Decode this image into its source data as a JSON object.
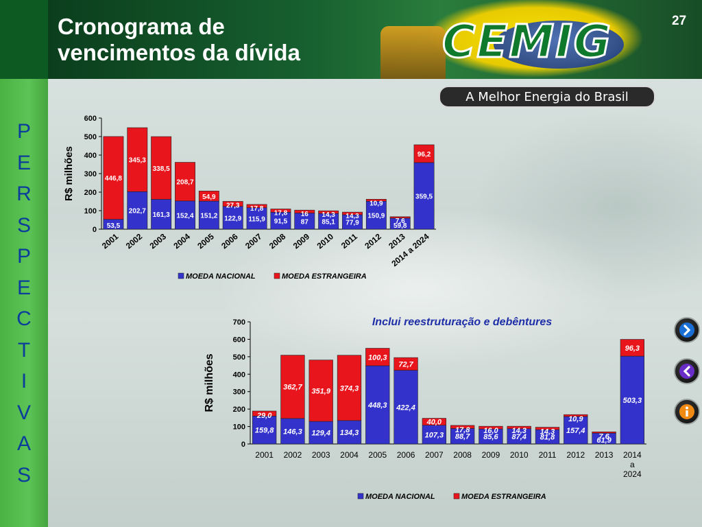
{
  "slide": {
    "title_line1": "Cronograma de",
    "title_line2": "vencimentos da dívida",
    "page_number": "27",
    "logo_text": "CEMIG",
    "slogan": "A Melhor Energia do Brasil",
    "sidebar_letters": [
      "P",
      "E",
      "R",
      "S",
      "P",
      "E",
      "C",
      "T",
      "I",
      "V",
      "A",
      "S"
    ]
  },
  "chart_data": [
    {
      "type": "bar",
      "stacked": true,
      "ylabel": "R$ milhões",
      "ylim": [
        0,
        600
      ],
      "yticks": [
        0,
        100,
        200,
        300,
        400,
        500,
        600
      ],
      "grid": false,
      "legend_position": "bottom",
      "categories": [
        "2001",
        "2002",
        "2003",
        "2004",
        "2005",
        "2006",
        "2007",
        "2008",
        "2009",
        "2010",
        "2011",
        "2012",
        "2013",
        "2014 a 2024"
      ],
      "series": [
        {
          "name": "MOEDA NACIONAL",
          "color": "#3333cc",
          "values": [
            53.5,
            202.7,
            161.3,
            152.4,
            151.2,
            122.9,
            115.9,
            91.5,
            87,
            85.1,
            77.9,
            150.9,
            59.8,
            359.5
          ],
          "labels": [
            "53,5",
            "202,7",
            "161,3",
            "152,4",
            "151,2",
            "122,9",
            "115,9",
            "91,5",
            "87",
            "85,1",
            "77,9",
            "150,9",
            "59,8",
            "359,5"
          ]
        },
        {
          "name": "MOEDA ESTRANGEIRA",
          "color": "#e8151c",
          "values": [
            446.8,
            345.3,
            338.5,
            208.7,
            54.9,
            27.3,
            17.8,
            17.8,
            16,
            14.3,
            14.3,
            10.9,
            7.6,
            96.2
          ],
          "labels": [
            "446,8",
            "345,3",
            "338,5",
            "208,7",
            "54,9",
            "27,3",
            "17,8",
            "17,8",
            "16",
            "14,3",
            "14,3",
            "10,9",
            "7,6",
            "96,2"
          ]
        }
      ]
    },
    {
      "type": "bar",
      "stacked": true,
      "title": "Inclui reestruturação e debêntures",
      "ylabel": "R$ milhões",
      "ylim": [
        0,
        700
      ],
      "yticks": [
        0,
        100,
        200,
        300,
        400,
        500,
        600,
        700
      ],
      "grid": false,
      "legend_position": "bottom",
      "categories": [
        "2001",
        "2002",
        "2003",
        "2004",
        "2005",
        "2006",
        "2007",
        "2008",
        "2009",
        "2010",
        "2011",
        "2012",
        "2013",
        "2014 a 2024"
      ],
      "series": [
        {
          "name": "MOEDA NACIONAL",
          "color": "#3333cc",
          "values": [
            159.8,
            146.3,
            129.4,
            134.3,
            448.3,
            422.4,
            107.3,
            88.7,
            85.6,
            87.4,
            81.8,
            157.4,
            61.9,
            503.3
          ],
          "labels": [
            "159,8",
            "146,3",
            "129,4",
            "134,3",
            "448,3",
            "422,4",
            "107,3",
            "88,7",
            "85,6",
            "87,4",
            "81,8",
            "157,4",
            "61,9",
            "503,3"
          ]
        },
        {
          "name": "MOEDA ESTRANGEIRA",
          "color": "#e8151c",
          "values": [
            29.0,
            362.7,
            351.9,
            374.3,
            100.3,
            72.7,
            40.0,
            17.8,
            16.0,
            14.3,
            14.3,
            10.9,
            7.6,
            96.3
          ],
          "labels": [
            "29,0",
            "362,7",
            "351,9",
            "374,3",
            "100,3",
            "72,7",
            "40,0",
            "17,8",
            "16,0",
            "14,3",
            "14,3",
            "10,9",
            "7,6",
            "96,3"
          ]
        }
      ]
    }
  ]
}
